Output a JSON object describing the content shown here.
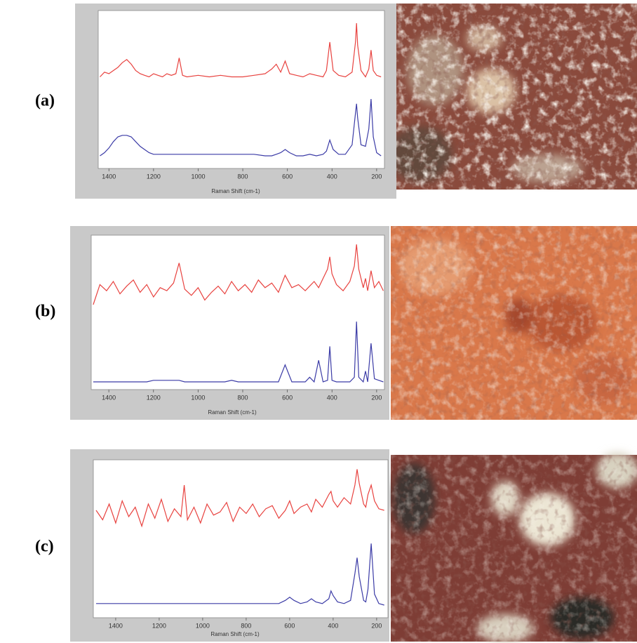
{
  "chart_data": [
    {
      "type": "line",
      "panel_label": "(a)",
      "x_label": "Raman Shift (cm-1)",
      "x": [
        1440,
        1420,
        1400,
        1380,
        1360,
        1340,
        1320,
        1300,
        1280,
        1260,
        1240,
        1220,
        1200,
        1180,
        1160,
        1140,
        1120,
        1100,
        1085,
        1070,
        1050,
        1000,
        950,
        900,
        850,
        800,
        750,
        700,
        670,
        650,
        630,
        610,
        590,
        560,
        530,
        500,
        470,
        440,
        425,
        410,
        395,
        370,
        340,
        310,
        295,
        290,
        285,
        270,
        250,
        235,
        225,
        215,
        200,
        180
      ],
      "xlim": [
        1448,
        165
      ],
      "xticks": [
        1400,
        1200,
        1000,
        800,
        600,
        400,
        200
      ],
      "ylim": [
        0,
        100
      ],
      "series": [
        {
          "color": "#e8423f",
          "values": [
            58,
            61,
            60,
            62,
            64,
            67,
            69,
            66,
            62,
            60,
            59,
            58,
            60,
            59,
            58,
            60,
            59,
            60,
            70,
            59,
            58,
            59,
            58,
            59,
            58,
            58,
            59,
            60,
            63,
            66,
            61,
            68,
            60,
            59,
            58,
            60,
            59,
            58,
            62,
            80,
            62,
            59,
            58,
            61,
            80,
            92,
            78,
            62,
            58,
            63,
            75,
            62,
            59,
            58
          ]
        },
        {
          "color": "#3b3ba6",
          "values": [
            8,
            10,
            13,
            17,
            20,
            21,
            21,
            20,
            17,
            14,
            12,
            10,
            9,
            9,
            9,
            9,
            9,
            9,
            9,
            9,
            9,
            9,
            9,
            9,
            9,
            9,
            9,
            8,
            8,
            9,
            10,
            12,
            10,
            8,
            8,
            9,
            8,
            9,
            11,
            18,
            12,
            9,
            9,
            15,
            35,
            41,
            32,
            15,
            14,
            25,
            44,
            20,
            10,
            8
          ]
        }
      ]
    },
    {
      "type": "line",
      "panel_label": "(b)",
      "x_label": "Raman Shift (cm-1)",
      "x": [
        1470,
        1440,
        1410,
        1380,
        1350,
        1320,
        1290,
        1260,
        1230,
        1200,
        1170,
        1140,
        1110,
        1085,
        1060,
        1030,
        1000,
        970,
        940,
        910,
        880,
        850,
        820,
        790,
        760,
        730,
        700,
        670,
        640,
        610,
        580,
        550,
        520,
        500,
        480,
        460,
        440,
        420,
        410,
        400,
        380,
        350,
        320,
        300,
        290,
        280,
        260,
        250,
        240,
        225,
        210,
        190,
        170
      ],
      "xlim": [
        1479,
        165
      ],
      "xticks": [
        1400,
        1200,
        1000,
        800,
        600,
        400,
        200
      ],
      "ylim": [
        0,
        100
      ],
      "series": [
        {
          "color": "#e8423f",
          "values": [
            55,
            68,
            64,
            70,
            62,
            67,
            71,
            63,
            68,
            60,
            66,
            64,
            69,
            82,
            65,
            61,
            66,
            58,
            63,
            67,
            62,
            70,
            64,
            68,
            63,
            71,
            66,
            69,
            63,
            74,
            66,
            68,
            64,
            67,
            70,
            66,
            72,
            78,
            86,
            75,
            68,
            64,
            70,
            80,
            94,
            78,
            66,
            72,
            64,
            77,
            66,
            70,
            64
          ]
        },
        {
          "color": "#3b3ba6",
          "values": [
            5,
            5,
            5,
            5,
            5,
            5,
            5,
            5,
            5,
            6,
            6,
            6,
            6,
            6,
            5,
            5,
            5,
            5,
            5,
            5,
            5,
            6,
            5,
            5,
            5,
            5,
            5,
            5,
            5,
            16,
            5,
            5,
            5,
            8,
            5,
            19,
            5,
            6,
            28,
            6,
            5,
            5,
            5,
            8,
            44,
            8,
            5,
            12,
            5,
            30,
            7,
            6,
            5
          ]
        }
      ]
    },
    {
      "type": "line",
      "panel_label": "(c)",
      "x_label": "Raman Shift (cm-1)",
      "x": [
        1490,
        1460,
        1430,
        1400,
        1370,
        1340,
        1310,
        1280,
        1250,
        1220,
        1190,
        1160,
        1130,
        1100,
        1085,
        1070,
        1040,
        1010,
        980,
        950,
        920,
        890,
        860,
        830,
        800,
        770,
        740,
        710,
        680,
        650,
        620,
        600,
        580,
        550,
        520,
        500,
        480,
        450,
        420,
        410,
        400,
        380,
        350,
        320,
        300,
        290,
        280,
        260,
        250,
        240,
        225,
        210,
        190,
        165
      ],
      "xlim": [
        1503,
        148
      ],
      "xticks": [
        1400,
        1200,
        1000,
        800,
        600,
        400,
        200
      ],
      "ylim": [
        0,
        100
      ],
      "series": [
        {
          "color": "#e8423f",
          "values": [
            68,
            62,
            72,
            60,
            74,
            64,
            70,
            58,
            72,
            63,
            75,
            61,
            69,
            64,
            84,
            62,
            70,
            60,
            72,
            65,
            67,
            73,
            61,
            70,
            66,
            72,
            64,
            69,
            71,
            63,
            68,
            74,
            66,
            70,
            72,
            67,
            75,
            70,
            78,
            80,
            74,
            70,
            76,
            72,
            84,
            94,
            85,
            72,
            70,
            78,
            84,
            74,
            69,
            68
          ]
        },
        {
          "color": "#3b3ba6",
          "values": [
            9,
            9,
            9,
            9,
            9,
            9,
            9,
            9,
            9,
            9,
            9,
            9,
            9,
            9,
            9,
            9,
            9,
            9,
            9,
            9,
            9,
            9,
            9,
            9,
            9,
            9,
            9,
            9,
            9,
            9,
            11,
            13,
            11,
            9,
            10,
            12,
            10,
            9,
            12,
            17,
            14,
            10,
            9,
            11,
            28,
            38,
            26,
            11,
            10,
            18,
            47,
            15,
            9,
            8
          ]
        }
      ]
    }
  ]
}
